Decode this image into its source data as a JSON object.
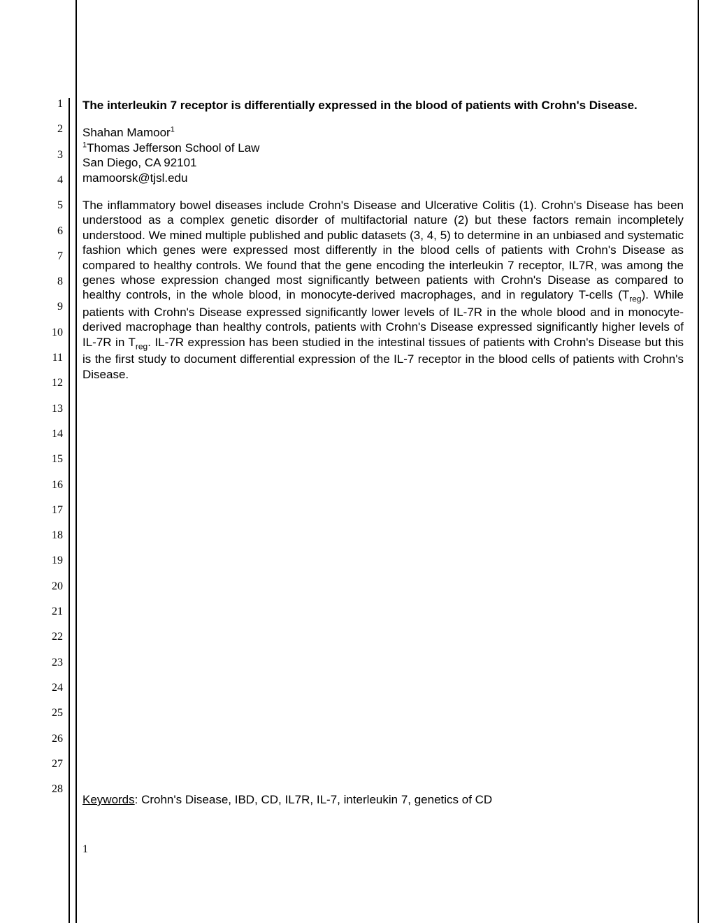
{
  "title": "The interleukin 7 receptor is differentially expressed in the blood of patients with Crohn's Disease.",
  "author": {
    "name": "Shahan Mamoor",
    "sup": "1",
    "affiliation_sup": "1",
    "affiliation": "Thomas Jefferson School of Law",
    "location": "San Diego, CA 92101",
    "email": "mamoorsk@tjsl.edu"
  },
  "abstract": "The inflammatory bowel diseases include Crohn's Disease and Ulcerative Colitis (1).  Crohn's Disease has been understood as a complex genetic disorder of multifactorial nature (2) but these factors remain incompletely understood.  We mined multiple published and public datasets (3, 4, 5) to determine in an unbiased and systematic fashion which genes were expressed most differently in the blood cells of patients with Crohn's Disease as compared to healthy controls.  We found that the gene encoding the interleukin 7 receptor, IL7R, was among the genes whose expression changed most significantly between patients with Crohn's Disease as compared to healthy controls, in the whole blood, in monocyte-derived macrophages, and in regulatory T-cells (T",
  "abstract_sub1": "reg",
  "abstract_mid": ").  While patients with Crohn's Disease expressed significantly lower levels of IL-7R in the whole blood and in monocyte-derived macrophage than healthy controls, patients with Crohn's Disease expressed significantly higher levels of IL-7R in T",
  "abstract_sub2": "reg",
  "abstract_end": ".  IL-7R expression has been studied in the intestinal tissues of patients with Crohn's Disease but this is the first study to document differential expression of the IL-7 receptor in the blood cells of patients with Crohn's Disease.",
  "keywords_label": "Keywords",
  "keywords": ": Crohn's Disease, IBD, CD, IL7R, IL-7, interleukin 7, genetics of CD",
  "page_number": "1",
  "line_numbers": [
    "1",
    "2",
    "3",
    "4",
    "5",
    "6",
    "7",
    "8",
    "9",
    "10",
    "11",
    "12",
    "13",
    "14",
    "15",
    "16",
    "17",
    "18",
    "19",
    "20",
    "21",
    "22",
    "23",
    "24",
    "25",
    "26",
    "27",
    "28"
  ],
  "line_spacing": 36.3,
  "colors": {
    "text": "#000000",
    "background": "#ffffff",
    "line": "#000000"
  }
}
